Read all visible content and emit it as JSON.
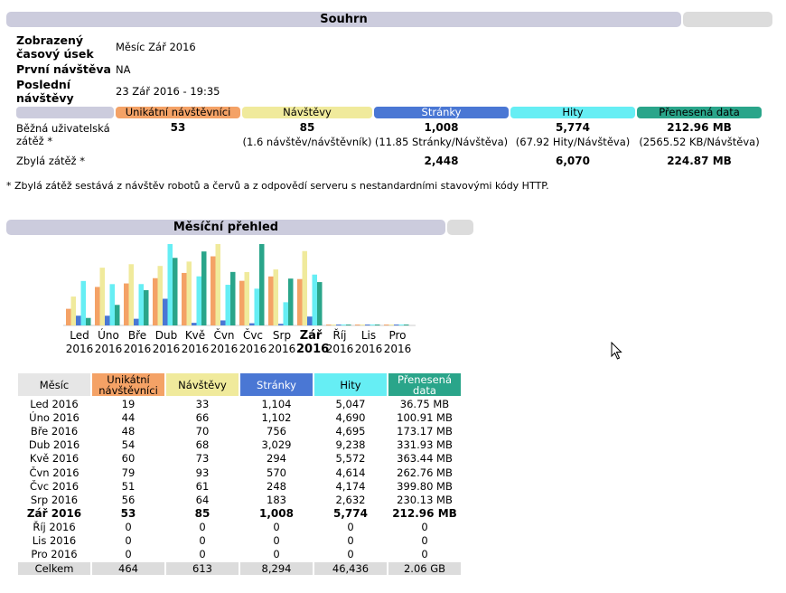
{
  "summary": {
    "title": "Souhrn",
    "range_label": "Zobrazený časový úsek",
    "range_value": "Měsíc Zář 2016",
    "first_label": "První návštěva",
    "first_value": "NA",
    "last_label": "Poslední návštěvy",
    "last_value": "23 Zář 2016 - 19:35",
    "columns": [
      "Unikátní návštěvníci",
      "Návštěvy",
      "Stránky",
      "Hity",
      "Přenesená data"
    ],
    "column_colors": [
      "#f4a266",
      "#f0ea9c",
      "#4a77d4",
      "#66eef4",
      "#2aa58a"
    ],
    "normal_label": "Běžná uživatelská zátěž *",
    "normal_values": [
      "53",
      "85",
      "1,008",
      "5,774",
      "212.96 MB"
    ],
    "normal_subs": [
      "",
      "(1.6 návštěv/návštěvník)",
      "(11.85 Stránky/Návštěva)",
      "(67.92 Hity/Návštěva)",
      "(2565.52 KB/Návštěva)"
    ],
    "other_label": "Zbylá zátěž *",
    "other_values": [
      "",
      "",
      "2,448",
      "6,070",
      "224.87 MB"
    ],
    "footnote": "* Zbylá zátěž sestává z návštěv robotů a červů a z odpovědí serveru s nestandardními stavovými kódy HTTP."
  },
  "monthly": {
    "title": "Měsíční přehled",
    "headers": [
      "Měsíc",
      "Unikátní návštěvníci",
      "Návštěvy",
      "Stránky",
      "Hity",
      "Přenesená data"
    ],
    "header_colors": [
      "#e6e6e6",
      "#f4a266",
      "#f0ea9c",
      "#4a77d4",
      "#66eef4",
      "#2aa58a"
    ],
    "rows": [
      {
        "month": "Led 2016",
        "uniq": "19",
        "visits": "33",
        "pages": "1,104",
        "hits": "5,047",
        "data": "36.75 MB",
        "bold": false
      },
      {
        "month": "Úno 2016",
        "uniq": "44",
        "visits": "66",
        "pages": "1,102",
        "hits": "4,690",
        "data": "100.91 MB",
        "bold": false
      },
      {
        "month": "Bře 2016",
        "uniq": "48",
        "visits": "70",
        "pages": "756",
        "hits": "4,695",
        "data": "173.17 MB",
        "bold": false
      },
      {
        "month": "Dub 2016",
        "uniq": "54",
        "visits": "68",
        "pages": "3,029",
        "hits": "9,238",
        "data": "331.93 MB",
        "bold": false
      },
      {
        "month": "Kvě 2016",
        "uniq": "60",
        "visits": "73",
        "pages": "294",
        "hits": "5,572",
        "data": "363.44 MB",
        "bold": false
      },
      {
        "month": "Čvn 2016",
        "uniq": "79",
        "visits": "93",
        "pages": "570",
        "hits": "4,614",
        "data": "262.76 MB",
        "bold": false
      },
      {
        "month": "Čvc 2016",
        "uniq": "51",
        "visits": "61",
        "pages": "248",
        "hits": "4,174",
        "data": "399.80 MB",
        "bold": false
      },
      {
        "month": "Srp 2016",
        "uniq": "56",
        "visits": "64",
        "pages": "183",
        "hits": "2,632",
        "data": "230.13 MB",
        "bold": false
      },
      {
        "month": "Zář 2016",
        "uniq": "53",
        "visits": "85",
        "pages": "1,008",
        "hits": "5,774",
        "data": "212.96 MB",
        "bold": true
      },
      {
        "month": "Říj 2016",
        "uniq": "0",
        "visits": "0",
        "pages": "0",
        "hits": "0",
        "data": "0",
        "bold": false
      },
      {
        "month": "Lis 2016",
        "uniq": "0",
        "visits": "0",
        "pages": "0",
        "hits": "0",
        "data": "0",
        "bold": false
      },
      {
        "month": "Pro 2016",
        "uniq": "0",
        "visits": "0",
        "pages": "0",
        "hits": "0",
        "data": "0",
        "bold": false
      }
    ],
    "total": {
      "month": "Celkem",
      "uniq": "464",
      "visits": "613",
      "pages": "8,294",
      "hits": "46,436",
      "data": "2.06 GB"
    }
  },
  "chart_data": {
    "type": "bar",
    "categories": [
      {
        "m": "Led",
        "y": "2016"
      },
      {
        "m": "Úno",
        "y": "2016"
      },
      {
        "m": "Bře",
        "y": "2016"
      },
      {
        "m": "Dub",
        "y": "2016"
      },
      {
        "m": "Kvě",
        "y": "2016"
      },
      {
        "m": "Čvn",
        "y": "2016"
      },
      {
        "m": "Čvc",
        "y": "2016"
      },
      {
        "m": "Srp",
        "y": "2016"
      },
      {
        "m": "Zář",
        "y": "2016"
      },
      {
        "m": "Říj",
        "y": "2016"
      },
      {
        "m": "Lis",
        "y": "2016"
      },
      {
        "m": "Pro",
        "y": "2016"
      }
    ],
    "highlight_index": 8,
    "series": [
      {
        "key": "uniq",
        "color": "#f4a266",
        "values": [
          19,
          44,
          48,
          54,
          60,
          79,
          51,
          56,
          53,
          0,
          0,
          0
        ]
      },
      {
        "key": "visits",
        "color": "#f0ea9c",
        "values": [
          33,
          66,
          70,
          68,
          73,
          93,
          61,
          64,
          85,
          0,
          0,
          0
        ]
      },
      {
        "key": "pages",
        "color": "#4a77d4",
        "values": [
          1104,
          1102,
          756,
          3029,
          294,
          570,
          248,
          183,
          1008,
          0,
          0,
          0
        ]
      },
      {
        "key": "hits",
        "color": "#66eef4",
        "values": [
          5047,
          4690,
          4695,
          9238,
          5572,
          4614,
          4174,
          2632,
          5774,
          0,
          0,
          0
        ]
      },
      {
        "key": "data",
        "color": "#2aa58a",
        "values": [
          36.75,
          100.91,
          173.17,
          331.93,
          363.44,
          262.76,
          399.8,
          230.13,
          212.96,
          0,
          0,
          0
        ]
      }
    ],
    "scale_groups": [
      [
        "uniq",
        "visits"
      ],
      [
        "pages",
        "hits"
      ],
      [
        "data"
      ]
    ]
  }
}
